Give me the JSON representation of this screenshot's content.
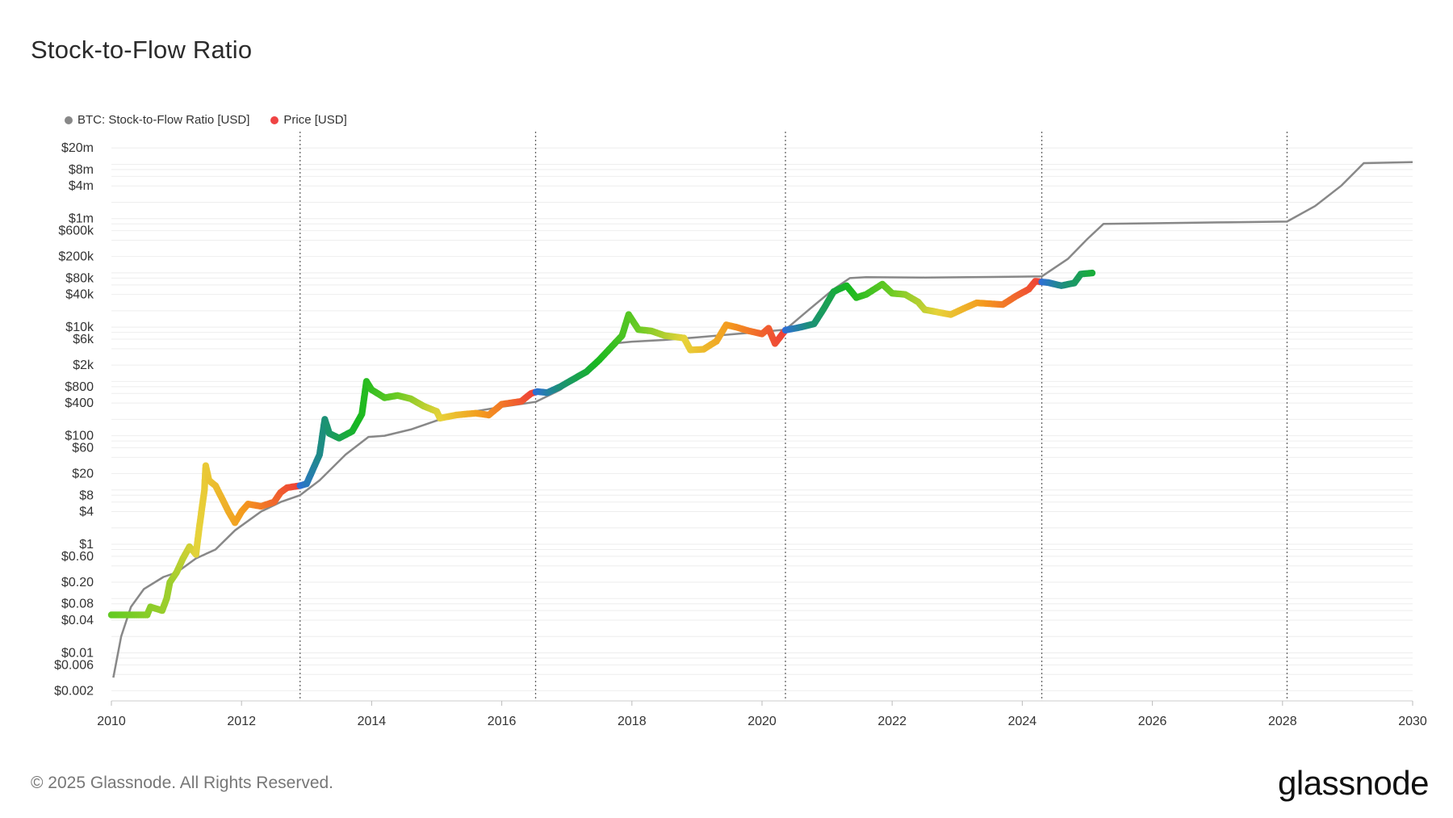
{
  "title": "Stock-to-Flow Ratio",
  "legend": [
    {
      "label": "BTC: Stock-to-Flow Ratio [USD]",
      "color": "#888888"
    },
    {
      "label": "Price [USD]",
      "color": "#ef4444"
    }
  ],
  "footer": "© 2025 Glassnode. All Rights Reserved.",
  "logo": "glassnode",
  "chart_data": {
    "type": "line",
    "x_range": [
      2010,
      2030
    ],
    "y_scale": "log",
    "y_range": [
      0.0013,
      40000000
    ],
    "x_ticks": [
      {
        "value": 2010,
        "label": "2010"
      },
      {
        "value": 2012,
        "label": "2012"
      },
      {
        "value": 2014,
        "label": "2014"
      },
      {
        "value": 2016,
        "label": "2016"
      },
      {
        "value": 2018,
        "label": "2018"
      },
      {
        "value": 2020,
        "label": "2020"
      },
      {
        "value": 2022,
        "label": "2022"
      },
      {
        "value": 2024,
        "label": "2024"
      },
      {
        "value": 2026,
        "label": "2026"
      },
      {
        "value": 2028,
        "label": "2028"
      },
      {
        "value": 2030,
        "label": "2030"
      }
    ],
    "y_ticks": [
      {
        "value": 0.002,
        "label": "$0.002"
      },
      {
        "value": 0.006,
        "label": "$0.006"
      },
      {
        "value": 0.01,
        "label": "$0.01"
      },
      {
        "value": 0.04,
        "label": "$0.04"
      },
      {
        "value": 0.08,
        "label": "$0.08"
      },
      {
        "value": 0.2,
        "label": "$0.20"
      },
      {
        "value": 0.6,
        "label": "$0.60"
      },
      {
        "value": 1,
        "label": "$1"
      },
      {
        "value": 4,
        "label": "$4"
      },
      {
        "value": 8,
        "label": "$8"
      },
      {
        "value": 20,
        "label": "$20"
      },
      {
        "value": 60,
        "label": "$60"
      },
      {
        "value": 100,
        "label": "$100"
      },
      {
        "value": 400,
        "label": "$400"
      },
      {
        "value": 800,
        "label": "$800"
      },
      {
        "value": 2000,
        "label": "$2k"
      },
      {
        "value": 6000,
        "label": "$6k"
      },
      {
        "value": 10000,
        "label": "$10k"
      },
      {
        "value": 40000,
        "label": "$40k"
      },
      {
        "value": 80000,
        "label": "$80k"
      },
      {
        "value": 200000,
        "label": "$200k"
      },
      {
        "value": 600000,
        "label": "$600k"
      },
      {
        "value": 1000000,
        "label": "$1m"
      },
      {
        "value": 4000000,
        "label": "$4m"
      },
      {
        "value": 8000000,
        "label": "$8m"
      },
      {
        "value": 20000000,
        "label": "$20m"
      }
    ],
    "grid_lines": [
      0.002,
      0.004,
      0.006,
      0.008,
      0.01,
      0.02,
      0.04,
      0.06,
      0.08,
      0.1,
      0.2,
      0.4,
      0.6,
      0.8,
      1,
      2,
      4,
      6,
      8,
      10,
      20,
      40,
      60,
      80,
      100,
      200,
      400,
      600,
      800,
      1000,
      2000,
      4000,
      6000,
      8000,
      10000,
      20000,
      40000,
      60000,
      80000,
      100000,
      200000,
      400000,
      600000,
      800000,
      1000000,
      2000000,
      4000000,
      6000000,
      8000000,
      10000000,
      20000000
    ],
    "halvings": [
      2012.9,
      2016.52,
      2020.36,
      2024.3,
      2028.07
    ],
    "series": [
      {
        "name": "BTC: Stock-to-Flow Ratio [USD]",
        "color": "#888888",
        "points": [
          [
            2010.03,
            0.0035
          ],
          [
            2010.15,
            0.02
          ],
          [
            2010.3,
            0.07
          ],
          [
            2010.5,
            0.15
          ],
          [
            2010.8,
            0.25
          ],
          [
            2011.0,
            0.3
          ],
          [
            2011.3,
            0.55
          ],
          [
            2011.6,
            0.8
          ],
          [
            2011.9,
            1.8
          ],
          [
            2012.3,
            4
          ],
          [
            2012.6,
            6
          ],
          [
            2012.9,
            8
          ],
          [
            2013.2,
            15
          ],
          [
            2013.6,
            45
          ],
          [
            2013.95,
            95
          ],
          [
            2014.2,
            100
          ],
          [
            2014.6,
            130
          ],
          [
            2015.0,
            190
          ],
          [
            2015.5,
            270
          ],
          [
            2016.0,
            340
          ],
          [
            2016.52,
            420
          ],
          [
            2016.9,
            700
          ],
          [
            2017.3,
            1600
          ],
          [
            2017.7,
            5000
          ],
          [
            2018.0,
            5400
          ],
          [
            2018.5,
            5800
          ],
          [
            2019.0,
            6500
          ],
          [
            2019.5,
            7300
          ],
          [
            2020.0,
            8200
          ],
          [
            2020.36,
            9000
          ],
          [
            2020.7,
            20000
          ],
          [
            2021.1,
            50000
          ],
          [
            2021.35,
            80000
          ],
          [
            2021.6,
            83000
          ],
          [
            2022.5,
            82000
          ],
          [
            2023.5,
            84000
          ],
          [
            2024.3,
            86000
          ],
          [
            2024.7,
            180000
          ],
          [
            2025.0,
            420000
          ],
          [
            2025.25,
            800000
          ],
          [
            2026.0,
            820000
          ],
          [
            2027.0,
            850000
          ],
          [
            2028.07,
            880000
          ],
          [
            2028.5,
            1700000
          ],
          [
            2028.9,
            4000000
          ],
          [
            2029.25,
            10500000
          ],
          [
            2030.0,
            11000000
          ]
        ]
      },
      {
        "name": "Price [USD]",
        "color": "#ef4444",
        "points": [
          [
            2010.0,
            0.05
          ],
          [
            2010.25,
            0.05
          ],
          [
            2010.55,
            0.05
          ],
          [
            2010.6,
            0.07
          ],
          [
            2010.78,
            0.06
          ],
          [
            2010.85,
            0.1
          ],
          [
            2010.9,
            0.2
          ],
          [
            2011.0,
            0.3
          ],
          [
            2011.1,
            0.55
          ],
          [
            2011.2,
            0.9
          ],
          [
            2011.3,
            0.65
          ],
          [
            2011.35,
            2
          ],
          [
            2011.43,
            10
          ],
          [
            2011.45,
            28
          ],
          [
            2011.5,
            15
          ],
          [
            2011.6,
            12
          ],
          [
            2011.7,
            7
          ],
          [
            2011.8,
            4
          ],
          [
            2011.9,
            2.5
          ],
          [
            2012.0,
            4
          ],
          [
            2012.1,
            5.5
          ],
          [
            2012.3,
            5
          ],
          [
            2012.5,
            6
          ],
          [
            2012.6,
            9
          ],
          [
            2012.7,
            11
          ],
          [
            2012.9,
            12
          ],
          [
            2013.0,
            13
          ],
          [
            2013.2,
            45
          ],
          [
            2013.28,
            200
          ],
          [
            2013.35,
            110
          ],
          [
            2013.5,
            90
          ],
          [
            2013.7,
            120
          ],
          [
            2013.85,
            250
          ],
          [
            2013.92,
            1000
          ],
          [
            2014.0,
            700
          ],
          [
            2014.2,
            500
          ],
          [
            2014.4,
            550
          ],
          [
            2014.6,
            480
          ],
          [
            2014.8,
            350
          ],
          [
            2015.0,
            280
          ],
          [
            2015.05,
            210
          ],
          [
            2015.3,
            240
          ],
          [
            2015.6,
            260
          ],
          [
            2015.8,
            240
          ],
          [
            2016.0,
            380
          ],
          [
            2016.3,
            430
          ],
          [
            2016.45,
            600
          ],
          [
            2016.55,
            650
          ],
          [
            2016.7,
            620
          ],
          [
            2016.9,
            800
          ],
          [
            2017.1,
            1100
          ],
          [
            2017.3,
            1500
          ],
          [
            2017.5,
            2500
          ],
          [
            2017.7,
            4500
          ],
          [
            2017.85,
            7000
          ],
          [
            2017.95,
            17000
          ],
          [
            2018.1,
            9000
          ],
          [
            2018.3,
            8500
          ],
          [
            2018.5,
            7000
          ],
          [
            2018.8,
            6300
          ],
          [
            2018.9,
            3800
          ],
          [
            2019.1,
            3900
          ],
          [
            2019.3,
            5500
          ],
          [
            2019.45,
            11000
          ],
          [
            2019.6,
            10000
          ],
          [
            2019.8,
            8500
          ],
          [
            2020.0,
            7500
          ],
          [
            2020.1,
            9500
          ],
          [
            2020.2,
            5000
          ],
          [
            2020.36,
            8800
          ],
          [
            2020.6,
            10000
          ],
          [
            2020.8,
            11500
          ],
          [
            2020.95,
            22000
          ],
          [
            2021.1,
            45000
          ],
          [
            2021.3,
            58000
          ],
          [
            2021.45,
            35000
          ],
          [
            2021.6,
            40000
          ],
          [
            2021.85,
            62000
          ],
          [
            2022.0,
            42000
          ],
          [
            2022.2,
            40000
          ],
          [
            2022.4,
            29000
          ],
          [
            2022.5,
            21000
          ],
          [
            2022.9,
            17000
          ],
          [
            2023.1,
            22000
          ],
          [
            2023.3,
            28000
          ],
          [
            2023.7,
            26000
          ],
          [
            2023.9,
            37000
          ],
          [
            2024.1,
            50000
          ],
          [
            2024.2,
            70000
          ],
          [
            2024.4,
            66000
          ],
          [
            2024.6,
            58000
          ],
          [
            2024.8,
            65000
          ],
          [
            2024.9,
            95000
          ],
          [
            2025.1,
            100000
          ]
        ]
      }
    ],
    "price_color_stops": [
      {
        "t": 0.0,
        "color": "#2f6fd8"
      },
      {
        "t": 0.1,
        "color": "#1c8f7a"
      },
      {
        "t": 0.25,
        "color": "#18b820"
      },
      {
        "t": 0.42,
        "color": "#6ccb24"
      },
      {
        "t": 0.6,
        "color": "#e7d23a"
      },
      {
        "t": 0.78,
        "color": "#f49a1e"
      },
      {
        "t": 1.0,
        "color": "#ee4038"
      }
    ]
  }
}
